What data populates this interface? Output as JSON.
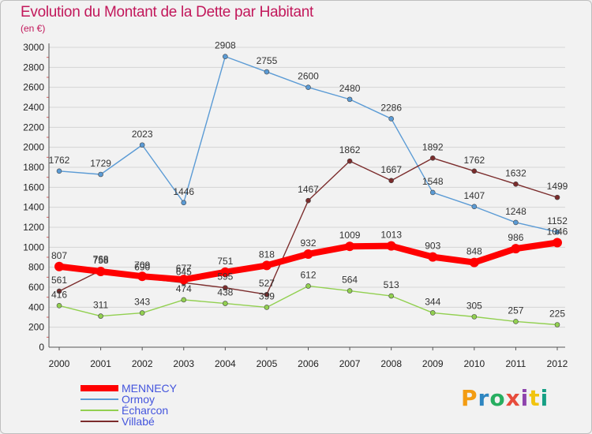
{
  "title": "Evolution du Montant de la Dette par Habitant",
  "subtitle": "(en €)",
  "logo": {
    "text": "Proxiti",
    "letters": [
      "P",
      "r",
      "o",
      "x",
      "i",
      "t",
      "i"
    ],
    "colors": [
      "#f39c12",
      "#2e86c1",
      "#27ae60",
      "#e74c3c",
      "#8e44ad",
      "#f1c40f",
      "#16a085"
    ]
  },
  "chart_data": {
    "type": "line",
    "title": "Evolution du Montant de la Dette par Habitant",
    "ylabel": "(en €)",
    "x": [
      "2000",
      "2001",
      "2002",
      "2003",
      "2004",
      "2005",
      "2006",
      "2007",
      "2008",
      "2009",
      "2010",
      "2011",
      "2012"
    ],
    "ylim": [
      0,
      3000
    ],
    "yticks": [
      0,
      200,
      400,
      600,
      800,
      1000,
      1200,
      1400,
      1600,
      1800,
      2000,
      2200,
      2400,
      2600,
      2800,
      3000
    ],
    "grid": true,
    "legend": "bottom-left",
    "series": [
      {
        "name": "Ormoy",
        "color": "#5b9bd5",
        "values": [
          1762,
          1729,
          2023,
          1446,
          2908,
          2755,
          2600,
          2480,
          2286,
          1548,
          1407,
          1248,
          1152
        ]
      },
      {
        "name": "Écharcon",
        "color": "#92d050",
        "values": [
          416,
          311,
          343,
          474,
          438,
          399,
          612,
          564,
          513,
          344,
          305,
          257,
          225
        ]
      },
      {
        "name": "Villabé",
        "color": "#7b2c2c",
        "values": [
          561,
          768,
          690,
          645,
          595,
          527,
          1467,
          1862,
          1667,
          1892,
          1762,
          1632,
          1499
        ]
      },
      {
        "name": "MENNECY",
        "color": "#ff0000",
        "values": [
          807,
          758,
          709,
          677,
          751,
          818,
          932,
          1009,
          1013,
          903,
          848,
          986,
          1046
        ]
      }
    ]
  }
}
